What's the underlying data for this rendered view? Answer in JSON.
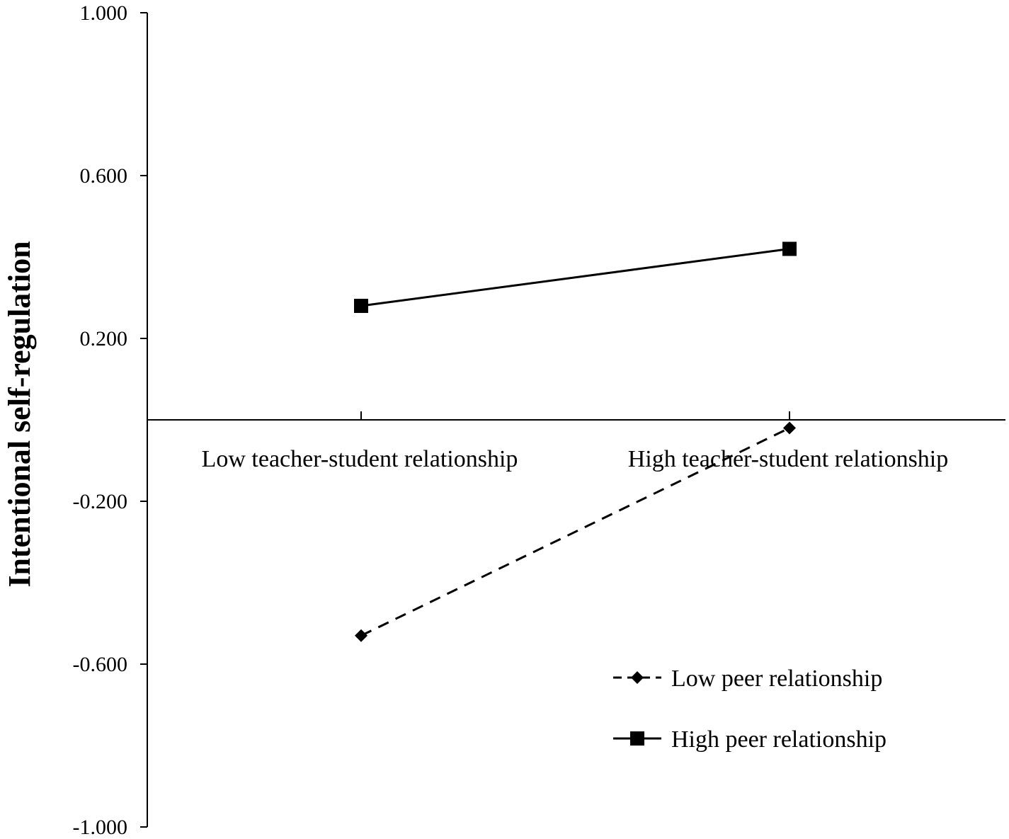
{
  "chart_data": {
    "type": "line",
    "title": "",
    "ylabel": "Intentional self-regulation",
    "xlabel": "",
    "categories": [
      "Low teacher-student relationship",
      "High teacher-student relationship"
    ],
    "ylim": [
      -1.0,
      1.0
    ],
    "yticks": [
      1.0,
      0.6,
      0.2,
      -0.2,
      -0.6,
      -1.0
    ],
    "ytick_labels": [
      "1.000",
      "0.600",
      "0.200",
      "-0.200",
      "-0.600",
      "-1.000"
    ],
    "grid": false,
    "legend_position": "bottom-right",
    "series": [
      {
        "name": "Low peer relationship",
        "values": [
          -0.53,
          -0.02
        ],
        "line_style": "dashed",
        "marker": "diamond",
        "color": "#000000"
      },
      {
        "name": "High peer relationship",
        "values": [
          0.28,
          0.42
        ],
        "line_style": "solid",
        "marker": "square",
        "color": "#000000"
      }
    ]
  }
}
